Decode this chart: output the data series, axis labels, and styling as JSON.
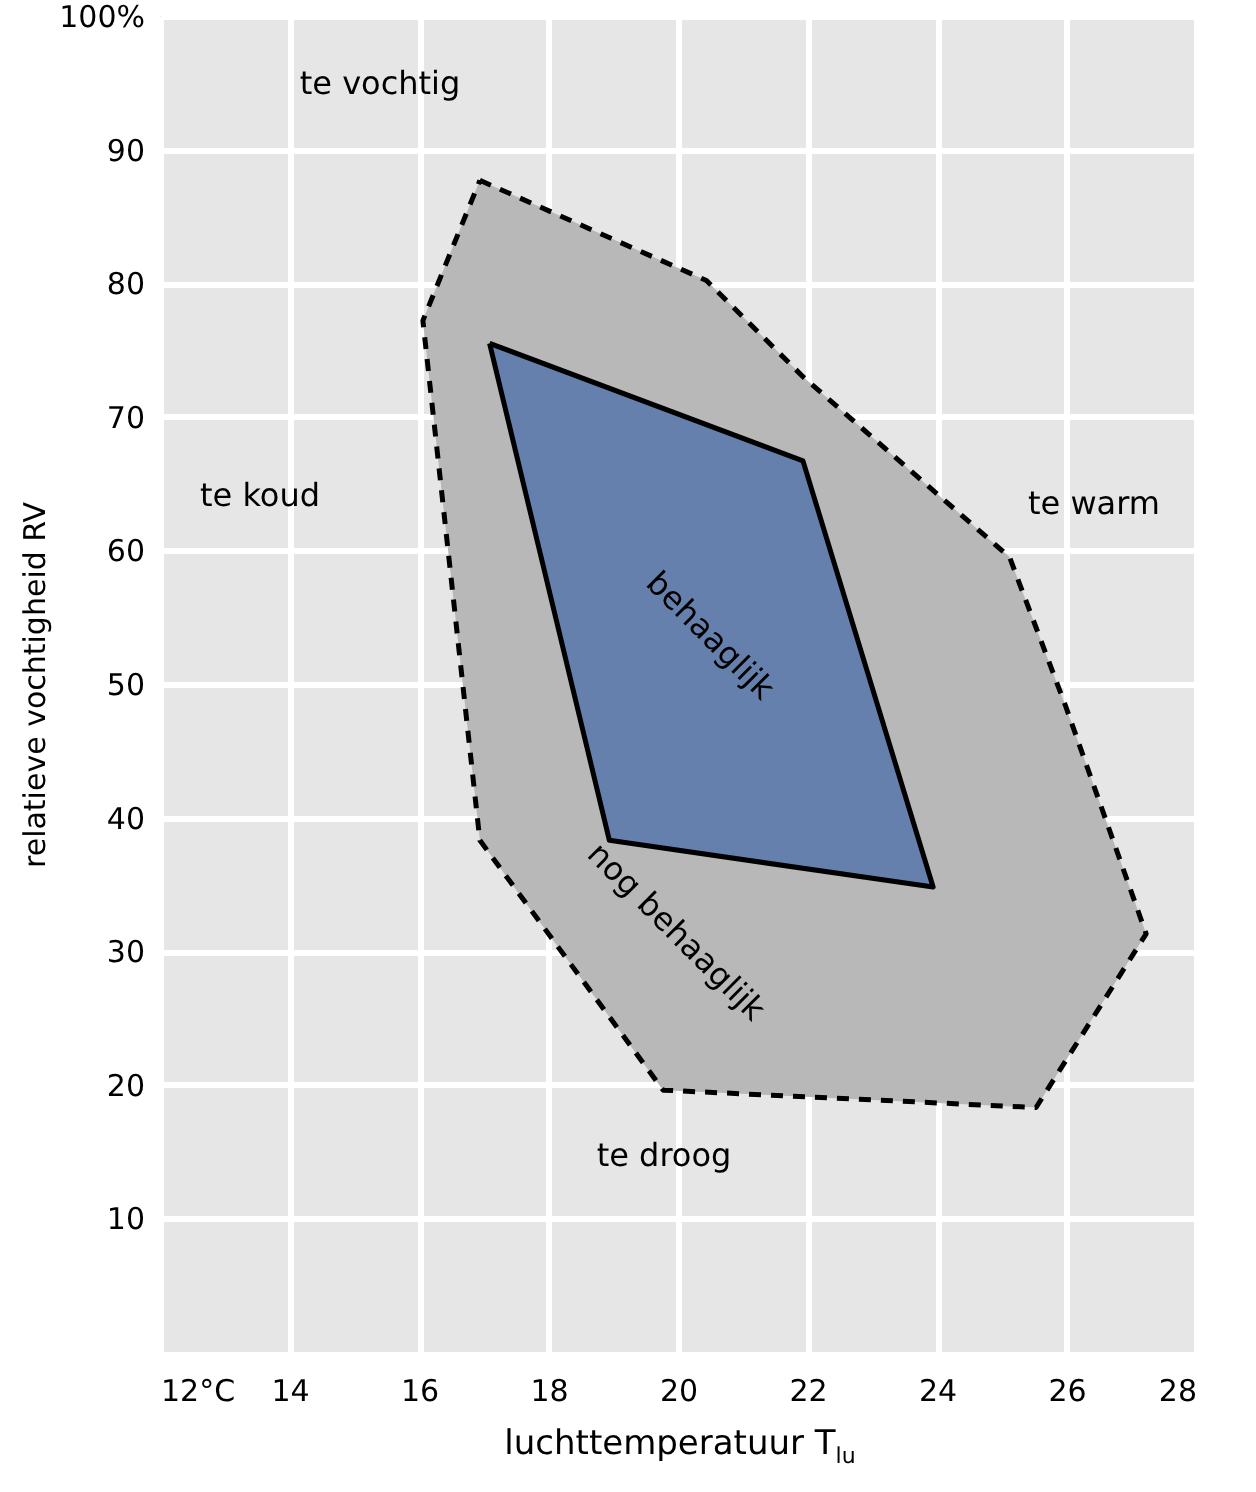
{
  "chart_data": {
    "type": "area",
    "xlabel": "luchttemperatuur T$_{lu}$",
    "ylabel": "relatieve vochtigheid RV",
    "series": [
      {
        "color": "#b8b8b8",
        "line_style": "dashed",
        "x": [
          16.94,
          20.44,
          21.93,
          25.12,
          25.99,
          27.23,
          25.53,
          19.77,
          16.94,
          16.06,
          16.94
        ],
        "values": [
          87.7,
          80.2,
          73.0,
          59.5,
          48.3,
          31.3,
          18.3,
          19.6,
          38.3,
          77.2,
          87.7
        ]
      },
      {
        "color": "#6680ad",
        "line_style": "solid",
        "x": [
          17.09,
          21.93,
          23.94,
          18.94,
          17.09
        ],
        "values": [
          75.5,
          66.7,
          34.8,
          38.3,
          75.5
        ]
      }
    ],
    "xlim": [
      12,
      28
    ],
    "ylim": [
      0,
      100
    ],
    "xticks": [
      {
        "value": 12,
        "label": "12°C"
      },
      14,
      16,
      18,
      20,
      22,
      24,
      26,
      28
    ],
    "yticks": [
      10,
      20,
      30,
      40,
      50,
      60,
      70,
      80,
      90,
      {
        "value": 100,
        "label": "100%"
      }
    ],
    "grid": true,
    "marker": "none",
    "annotations": [
      "te vochtig",
      "te koud",
      "te warm",
      "te droog",
      "behaaglijk",
      "nog behaaglijk"
    ]
  }
}
